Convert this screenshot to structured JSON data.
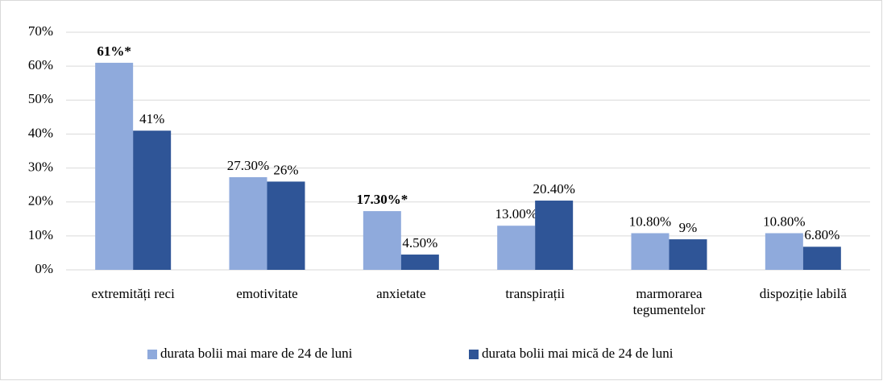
{
  "chart_data": {
    "type": "bar",
    "categories": [
      "extremități reci",
      "emotivitate",
      "anxietate",
      "transpirații",
      "marmorarea tegumentelor",
      "dispoziție labilă"
    ],
    "series": [
      {
        "name": "durata bolii mai mare de 24 de luni",
        "color": "#8faadc",
        "values": [
          61,
          27.3,
          17.3,
          13.0,
          10.8,
          10.8
        ],
        "value_labels": [
          "61%*",
          "27.30%",
          "17.30%*",
          "13.00%",
          "10.80%",
          "10.80%"
        ]
      },
      {
        "name": "durata bolii mai mică de 24 de luni",
        "color": "#2f5597",
        "values": [
          41,
          26,
          4.5,
          20.4,
          9,
          6.8
        ],
        "value_labels": [
          "41%",
          "26%",
          "4.50%",
          "20.40%",
          "9%",
          "6.80%"
        ]
      }
    ],
    "ylim": [
      0,
      70
    ],
    "yticks": [
      {
        "value": 0,
        "label": "0%"
      },
      {
        "value": 10,
        "label": "10%"
      },
      {
        "value": 20,
        "label": "20%"
      },
      {
        "value": 30,
        "label": "30%"
      },
      {
        "value": 40,
        "label": "40%"
      },
      {
        "value": 50,
        "label": "50%"
      },
      {
        "value": 60,
        "label": "60%"
      },
      {
        "value": 70,
        "label": "70%"
      }
    ],
    "grid": true,
    "legend": "bottom"
  }
}
